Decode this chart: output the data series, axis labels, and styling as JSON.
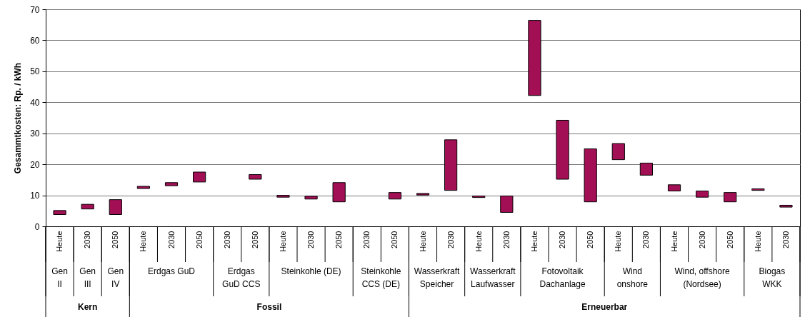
{
  "chart_data": {
    "type": "bar",
    "ylabel": "Gesammtkosten: Rp. / kWh",
    "categories": [
      "Heute",
      "2030",
      "2050",
      "Heute",
      "2030",
      "2050",
      "2030",
      "2050",
      "Heute",
      "2030",
      "2050",
      "2030",
      "2050",
      "Heute",
      "2030",
      "Heute",
      "2030",
      "Heute",
      "2030",
      "2050",
      "Heute",
      "2030",
      "Heute",
      "2030",
      "2050",
      "Heute",
      "2030"
    ],
    "base": [
      3.8,
      5.6,
      3.8,
      12.2,
      13.1,
      14.3,
      null,
      15.2,
      9.4,
      8.8,
      7.9,
      null,
      8.8,
      10.1,
      11.6,
      9.3,
      4.5,
      42.2,
      15.2,
      7.9,
      21.5,
      16.5,
      11.4,
      9.4,
      7.9,
      11.6,
      6.2
    ],
    "values": [
      1.3,
      1.5,
      4.8,
      0.7,
      1.0,
      3.2,
      null,
      1.5,
      0.6,
      0.9,
      6.2,
      null,
      2.1,
      0.5,
      16.3,
      0.5,
      5.3,
      24.2,
      19.0,
      17.1,
      5.2,
      3.9,
      2.0,
      2.0,
      3.0,
      0.5,
      0.6
    ],
    "color": "#a30f55",
    "ylim": [
      0,
      70
    ],
    "yticks": [
      0,
      10,
      20,
      30,
      40,
      50,
      60,
      70
    ],
    "grid": "y",
    "annotations": [
      "Gen\nII",
      "Gen\nIII",
      "Gen\nIV",
      "Erdgas GuD",
      "Erdgas\nGuD CCS",
      "Steinkohle (DE)",
      "Steinkohle\nCCS (DE)",
      "Wasserkraft\nSpeicher",
      "Wasserkraft\nLaufwasser",
      "Fotovoltaik\nDachanlage",
      "Wind\nonshore",
      "Wind, offshore\n(Nordsee)",
      "Biogas\nWKK",
      "Kern",
      "Fossil",
      "Erneuerbar"
    ]
  }
}
